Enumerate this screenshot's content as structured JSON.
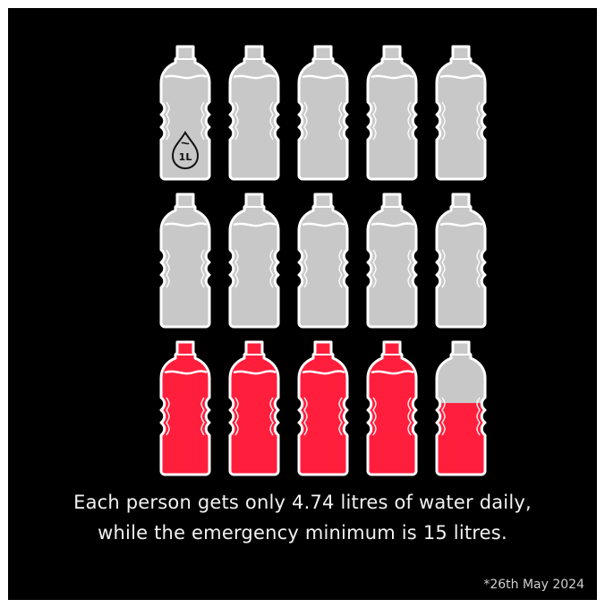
{
  "caption": {
    "line1": "Each person gets only 4.74 litres of water daily,",
    "line2": "while the emergency minimum is 15 litres."
  },
  "footnote": "*26th May 2024",
  "unit_label": "1L",
  "bottles": {
    "total": 15,
    "per_row": 5,
    "red_fill_fractions": [
      0,
      0,
      0,
      0,
      0,
      0,
      0,
      0,
      0,
      0,
      1,
      1,
      1,
      1,
      0.74
    ]
  },
  "colors": {
    "background": "#000000",
    "grey": "#c8c8c8",
    "red": "#ff1f3d",
    "outline": "#ffffff"
  },
  "icon": "water-drop-icon"
}
